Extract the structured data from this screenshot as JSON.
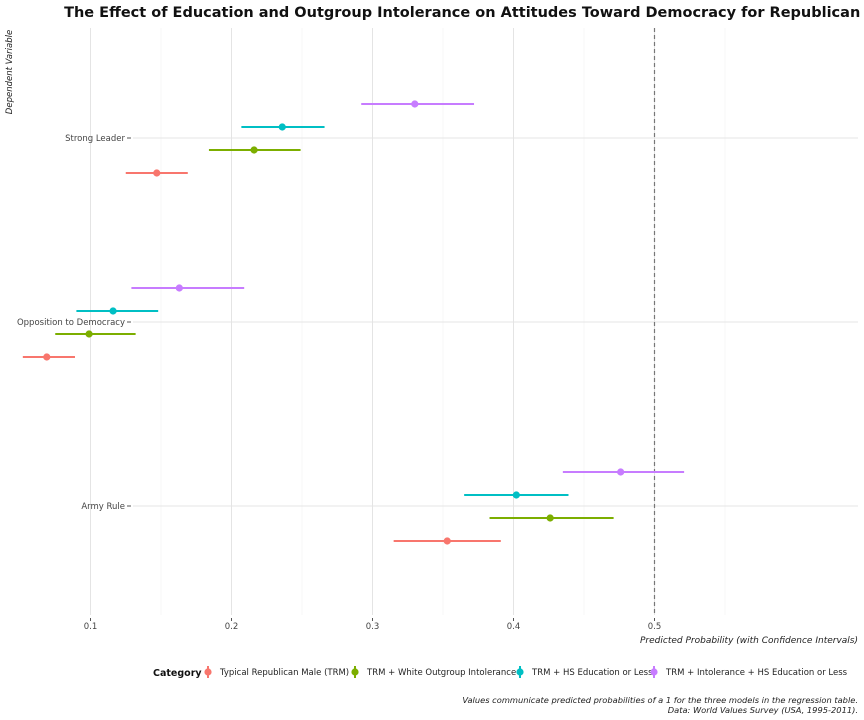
{
  "chart_data": {
    "type": "scatter",
    "title": "The Effect of Education and Outgroup Intolerance on Attitudes Toward Democracy for Republican Men",
    "xlabel": "Predicted Probability (with Confidence Intervals)",
    "ylabel": "Dependent Variable",
    "xlim": [
      0.05,
      0.55
    ],
    "x_ticks": [
      "0.1",
      "0.2",
      "0.3",
      "0.4",
      "0.5"
    ],
    "categories": [
      "Strong Leader",
      "Opposition to Democracy",
      "Army Rule"
    ],
    "reference_line": 0.5,
    "legend_title": "Category",
    "legend_position": "bottom",
    "series": [
      {
        "name": "Typical Republican Male (TRM)",
        "color": "#F8766D",
        "points": [
          {
            "category": "Strong Leader",
            "estimate": 0.147,
            "lower": 0.125,
            "upper": 0.169
          },
          {
            "category": "Opposition to Democracy",
            "estimate": 0.069,
            "lower": 0.052,
            "upper": 0.089
          },
          {
            "category": "Army Rule",
            "estimate": 0.353,
            "lower": 0.315,
            "upper": 0.391
          }
        ]
      },
      {
        "name": "TRM + White Outgroup Intolerance",
        "color": "#7CAE00",
        "points": [
          {
            "category": "Strong Leader",
            "estimate": 0.216,
            "lower": 0.184,
            "upper": 0.249
          },
          {
            "category": "Opposition to Democracy",
            "estimate": 0.099,
            "lower": 0.075,
            "upper": 0.132
          },
          {
            "category": "Army Rule",
            "estimate": 0.426,
            "lower": 0.383,
            "upper": 0.471
          }
        ]
      },
      {
        "name": "TRM + HS Education or Less",
        "color": "#00BFC4",
        "points": [
          {
            "category": "Strong Leader",
            "estimate": 0.236,
            "lower": 0.207,
            "upper": 0.266
          },
          {
            "category": "Opposition to Democracy",
            "estimate": 0.116,
            "lower": 0.09,
            "upper": 0.148
          },
          {
            "category": "Army Rule",
            "estimate": 0.402,
            "lower": 0.365,
            "upper": 0.439
          }
        ]
      },
      {
        "name": "TRM + Intolerance + HS Education or Less",
        "color": "#C77CFF",
        "points": [
          {
            "category": "Strong Leader",
            "estimate": 0.33,
            "lower": 0.292,
            "upper": 0.372
          },
          {
            "category": "Opposition to Democracy",
            "estimate": 0.163,
            "lower": 0.129,
            "upper": 0.209
          },
          {
            "category": "Army Rule",
            "estimate": 0.476,
            "lower": 0.435,
            "upper": 0.521
          }
        ]
      }
    ],
    "grid": true,
    "caption_lines": [
      "Values communicate predicted probabilities of a 1 for the three models in the regression table.",
      "Data: World Values Survey (USA, 1995-2011)."
    ]
  }
}
